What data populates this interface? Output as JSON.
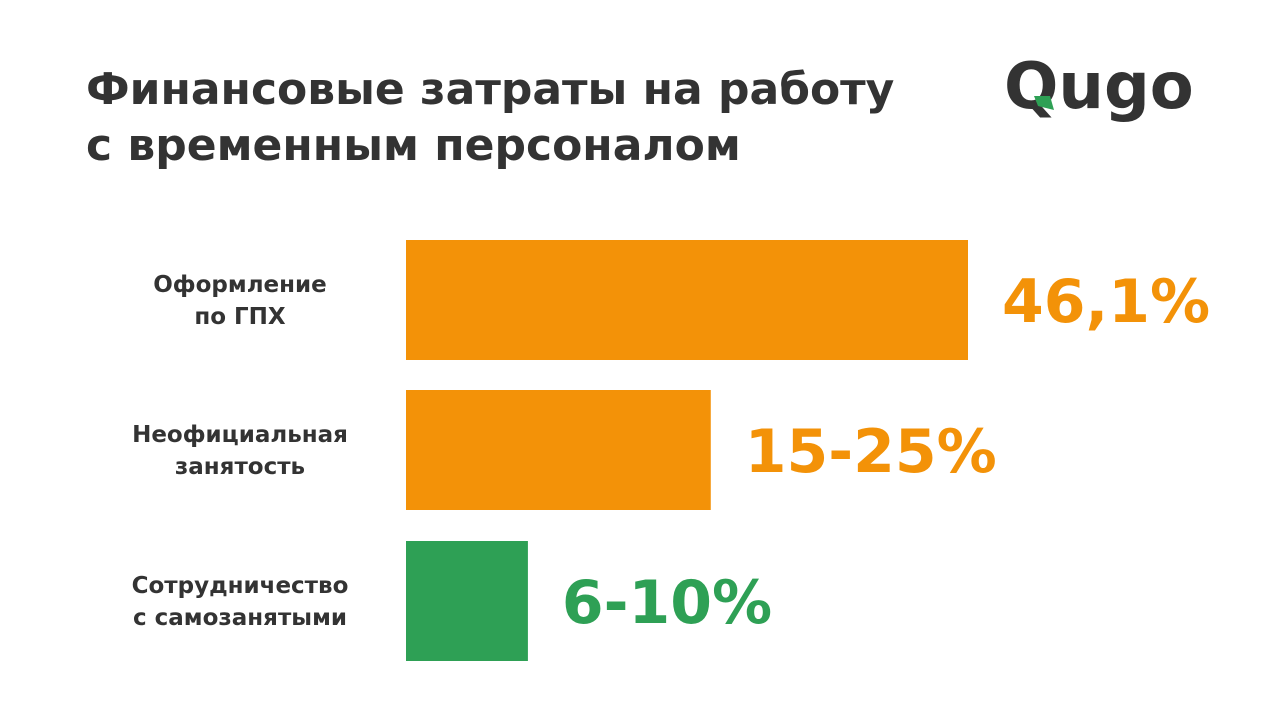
{
  "header": {
    "title_line1": "Финансовые затраты на работу",
    "title_line2": "с временным персоналом"
  },
  "logo": {
    "text": "Qugo",
    "icon": "qugo-logo",
    "text_color": "#333333",
    "accent_color": "#2ea055"
  },
  "colors": {
    "orange": "#f39208",
    "green": "#2ea055",
    "text": "#333333"
  },
  "chart_data": {
    "type": "bar",
    "orientation": "horizontal",
    "title": "Финансовые затраты на работу с временным персоналом",
    "categories": [
      [
        "Оформление",
        "по ГПХ"
      ],
      [
        "Неофициальная",
        "занятость"
      ],
      [
        "Сотрудничество",
        "с самозанятыми"
      ]
    ],
    "values": [
      46.1,
      25,
      10
    ],
    "value_labels": [
      "46,1%",
      "15-25%",
      "6-10%"
    ],
    "bar_colors": [
      "#f39208",
      "#f39208",
      "#2ea055"
    ],
    "xlim": [
      0,
      46.1
    ],
    "xlabel": "",
    "ylabel": "",
    "grid": false,
    "legend": "none"
  }
}
